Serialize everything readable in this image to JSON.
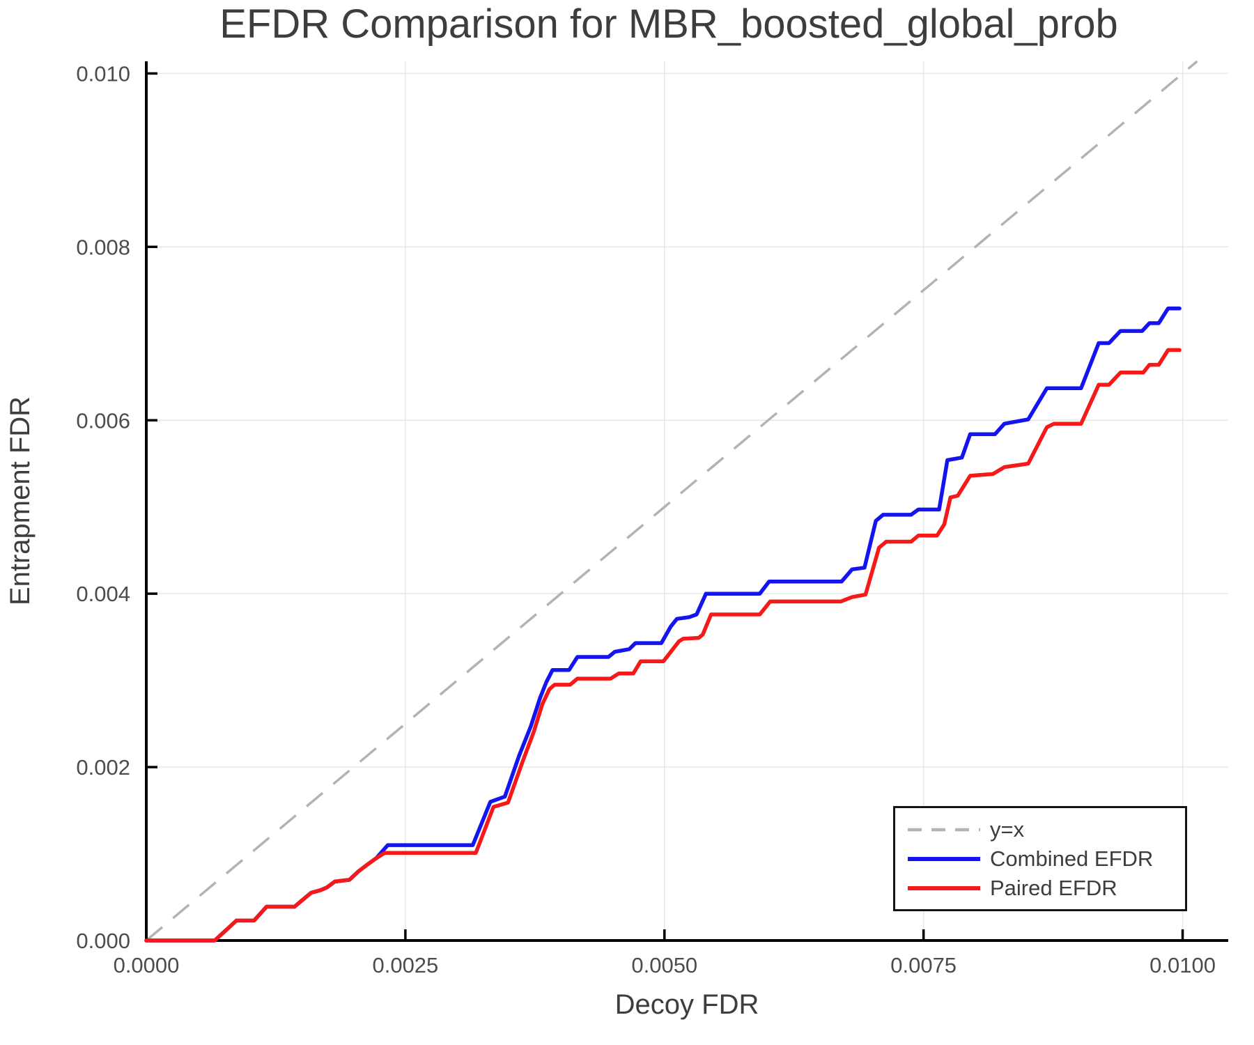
{
  "title": "EFDR Comparison for MBR_boosted_global_prob",
  "chart_data": {
    "type": "line",
    "title": "EFDR Comparison for MBR_boosted_global_prob",
    "xlabel": "Decoy FDR",
    "ylabel": "Entrapment FDR",
    "xlim": [
      0,
      0.01044
    ],
    "ylim": [
      0,
      0.01014
    ],
    "grid": true,
    "grid_color": "#e6e6e6",
    "spine_color": "#000000",
    "tick_color": "#000000",
    "tick_label_color": "#4c4c4c",
    "x_ticks": [
      0,
      0.0025,
      0.005,
      0.0075,
      0.01
    ],
    "x_tick_labels": [
      "0.0000",
      "0.0025",
      "0.0050",
      "0.0075",
      "0.0100"
    ],
    "y_ticks": [
      0,
      0.002,
      0.004,
      0.006,
      0.008,
      0.01
    ],
    "y_tick_labels": [
      "0.000",
      "0.002",
      "0.004",
      "0.006",
      "0.008",
      "0.010"
    ],
    "legend_position": "lower right",
    "identity_line": {
      "label": "y=x",
      "color": "#b3b3b3",
      "dashed": true
    },
    "series": [
      {
        "name": "Combined EFDR",
        "color": "#1414f0",
        "points": [
          [
            0.0,
            0.0
          ],
          [
            0.00066,
            0.0
          ],
          [
            0.00087,
            0.00023
          ],
          [
            0.00104,
            0.00023
          ],
          [
            0.00116,
            0.00039
          ],
          [
            0.00143,
            0.00039
          ],
          [
            0.00159,
            0.00055
          ],
          [
            0.00168,
            0.00058
          ],
          [
            0.00174,
            0.00061
          ],
          [
            0.00182,
            0.00068
          ],
          [
            0.00196,
            0.0007
          ],
          [
            0.00205,
            0.0008
          ],
          [
            0.00215,
            0.00089
          ],
          [
            0.00222,
            0.00095
          ],
          [
            0.00233,
            0.0011
          ],
          [
            0.00315,
            0.0011
          ],
          [
            0.00332,
            0.0016
          ],
          [
            0.00346,
            0.00166
          ],
          [
            0.0036,
            0.00214
          ],
          [
            0.00371,
            0.00247
          ],
          [
            0.0038,
            0.0028
          ],
          [
            0.00386,
            0.00298
          ],
          [
            0.00392,
            0.00312
          ],
          [
            0.00408,
            0.00312
          ],
          [
            0.00416,
            0.00327
          ],
          [
            0.00446,
            0.00327
          ],
          [
            0.00452,
            0.00333
          ],
          [
            0.00466,
            0.00336
          ],
          [
            0.00472,
            0.00343
          ],
          [
            0.00497,
            0.00343
          ],
          [
            0.00506,
            0.00362
          ],
          [
            0.00512,
            0.00371
          ],
          [
            0.00524,
            0.00373
          ],
          [
            0.00531,
            0.00376
          ],
          [
            0.0054,
            0.004
          ],
          [
            0.00592,
            0.004
          ],
          [
            0.00601,
            0.00414
          ],
          [
            0.00671,
            0.00414
          ],
          [
            0.00681,
            0.00428
          ],
          [
            0.00693,
            0.0043
          ],
          [
            0.00704,
            0.00484
          ],
          [
            0.00711,
            0.00491
          ],
          [
            0.00738,
            0.00491
          ],
          [
            0.00745,
            0.00497
          ],
          [
            0.00765,
            0.00497
          ],
          [
            0.00773,
            0.00554
          ],
          [
            0.00787,
            0.00557
          ],
          [
            0.00795,
            0.00584
          ],
          [
            0.00819,
            0.00584
          ],
          [
            0.00828,
            0.00596
          ],
          [
            0.00851,
            0.00601
          ],
          [
            0.00869,
            0.00637
          ],
          [
            0.00902,
            0.00637
          ],
          [
            0.00919,
            0.00689
          ],
          [
            0.00929,
            0.00689
          ],
          [
            0.0094,
            0.00703
          ],
          [
            0.00961,
            0.00703
          ],
          [
            0.00968,
            0.00712
          ],
          [
            0.00977,
            0.00712
          ],
          [
            0.00986,
            0.00729
          ],
          [
            0.00997,
            0.00729
          ]
        ]
      },
      {
        "name": "Paired EFDR",
        "color": "#f51919",
        "points": [
          [
            0.0,
            0.0
          ],
          [
            0.00066,
            0.0
          ],
          [
            0.00087,
            0.00023
          ],
          [
            0.00104,
            0.00023
          ],
          [
            0.00116,
            0.00039
          ],
          [
            0.00143,
            0.00039
          ],
          [
            0.00159,
            0.00055
          ],
          [
            0.00168,
            0.00058
          ],
          [
            0.00174,
            0.00061
          ],
          [
            0.00182,
            0.00068
          ],
          [
            0.00196,
            0.0007
          ],
          [
            0.00205,
            0.0008
          ],
          [
            0.00215,
            0.00089
          ],
          [
            0.00222,
            0.00095
          ],
          [
            0.0023,
            0.00101
          ],
          [
            0.00318,
            0.00101
          ],
          [
            0.00335,
            0.00154
          ],
          [
            0.00349,
            0.00159
          ],
          [
            0.00363,
            0.00206
          ],
          [
            0.00374,
            0.00241
          ],
          [
            0.00382,
            0.00272
          ],
          [
            0.00389,
            0.0029
          ],
          [
            0.00394,
            0.00295
          ],
          [
            0.00409,
            0.00295
          ],
          [
            0.00416,
            0.00302
          ],
          [
            0.00448,
            0.00302
          ],
          [
            0.00456,
            0.00308
          ],
          [
            0.0047,
            0.00308
          ],
          [
            0.00477,
            0.00322
          ],
          [
            0.00499,
            0.00322
          ],
          [
            0.00514,
            0.00345
          ],
          [
            0.00518,
            0.00348
          ],
          [
            0.00533,
            0.00349
          ],
          [
            0.00537,
            0.00353
          ],
          [
            0.00545,
            0.00376
          ],
          [
            0.00592,
            0.00376
          ],
          [
            0.00602,
            0.00391
          ],
          [
            0.0067,
            0.00391
          ],
          [
            0.00681,
            0.00396
          ],
          [
            0.00694,
            0.00399
          ],
          [
            0.00707,
            0.00453
          ],
          [
            0.00714,
            0.0046
          ],
          [
            0.00738,
            0.0046
          ],
          [
            0.00745,
            0.00467
          ],
          [
            0.00763,
            0.00467
          ],
          [
            0.0077,
            0.0048
          ],
          [
            0.00776,
            0.00511
          ],
          [
            0.00783,
            0.00513
          ],
          [
            0.00795,
            0.00536
          ],
          [
            0.00817,
            0.00538
          ],
          [
            0.00828,
            0.00546
          ],
          [
            0.00851,
            0.0055
          ],
          [
            0.00869,
            0.00592
          ],
          [
            0.00876,
            0.00596
          ],
          [
            0.00902,
            0.00596
          ],
          [
            0.00919,
            0.00641
          ],
          [
            0.00929,
            0.00641
          ],
          [
            0.0094,
            0.00655
          ],
          [
            0.00962,
            0.00655
          ],
          [
            0.00968,
            0.00664
          ],
          [
            0.00977,
            0.00664
          ],
          [
            0.00986,
            0.00681
          ],
          [
            0.00997,
            0.00681
          ]
        ]
      }
    ]
  },
  "legend": {
    "items": [
      {
        "label": "y=x",
        "style": "dashed",
        "color": "#b3b3b3"
      },
      {
        "label": "Combined EFDR",
        "style": "solid",
        "color": "#1414f0"
      },
      {
        "label": "Paired EFDR",
        "style": "solid",
        "color": "#f51919"
      }
    ]
  }
}
